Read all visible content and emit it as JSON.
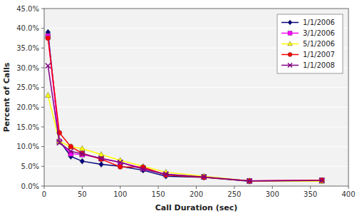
{
  "chart_data": {
    "type": "line",
    "xlabel": "Call Duration (sec)",
    "ylabel": "Percent of Calls",
    "x": [
      5,
      20,
      35,
      50,
      75,
      100,
      130,
      160,
      210,
      270,
      365
    ],
    "xlim": [
      0,
      400
    ],
    "ylim": [
      0,
      0.45
    ],
    "xticks": [
      0,
      50,
      100,
      150,
      200,
      250,
      300,
      350,
      400
    ],
    "yticks": [
      {
        "value": 0.0,
        "label": "0.0%"
      },
      {
        "value": 0.05,
        "label": "5.0%"
      },
      {
        "value": 0.1,
        "label": "10.0%"
      },
      {
        "value": 0.15,
        "label": "15.0%"
      },
      {
        "value": 0.2,
        "label": "20.0%"
      },
      {
        "value": 0.25,
        "label": "25.0%"
      },
      {
        "value": 0.3,
        "label": "30.0%"
      },
      {
        "value": 0.35,
        "label": "35.0%"
      },
      {
        "value": 0.4,
        "label": "40.0%"
      },
      {
        "value": 0.45,
        "label": "45.0%"
      }
    ],
    "grid": "y",
    "legend": "upper right",
    "series": [
      {
        "name": "1/1/2006",
        "color": "#000080",
        "marker": "diamond",
        "values": [
          0.39,
          0.115,
          0.075,
          0.063,
          0.055,
          0.05,
          0.04,
          0.025,
          0.022,
          0.012,
          0.013
        ]
      },
      {
        "name": "3/1/2006",
        "color": "#FF00FF",
        "marker": "square",
        "values": [
          0.38,
          0.113,
          0.082,
          0.08,
          0.07,
          0.06,
          0.045,
          0.03,
          0.023,
          0.013,
          0.015
        ]
      },
      {
        "name": "5/1/2006",
        "color": "#FFFF00",
        "marker": "triangle",
        "values": [
          0.23,
          0.113,
          0.1,
          0.095,
          0.08,
          0.065,
          0.05,
          0.035,
          0.025,
          0.013,
          0.012
        ]
      },
      {
        "name": "1/1/2007",
        "color": "#FF0000",
        "marker": "circle",
        "values": [
          0.375,
          0.135,
          0.1,
          0.083,
          0.068,
          0.049,
          0.048,
          0.028,
          0.022,
          0.013,
          0.015
        ]
      },
      {
        "name": "1/1/2008",
        "color": "#800080",
        "marker": "x",
        "values": [
          0.305,
          0.11,
          0.088,
          0.082,
          0.07,
          0.06,
          0.043,
          0.03,
          0.023,
          0.013,
          0.014
        ]
      }
    ]
  }
}
